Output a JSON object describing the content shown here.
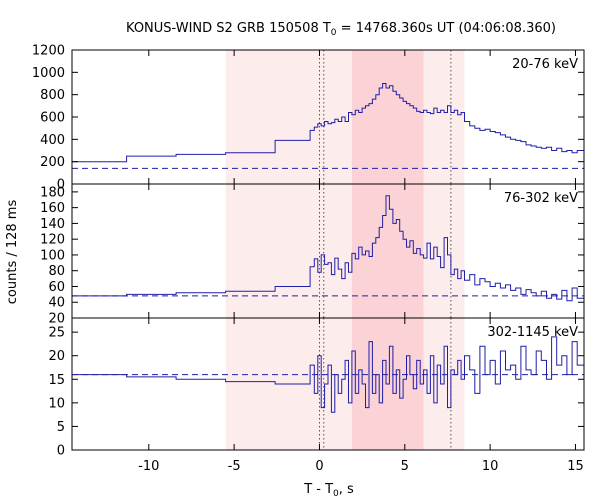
{
  "chart_data": {
    "type": "line",
    "title": "KONUS-WIND S2 GRB 150508 T",
    "title_sub": "0",
    "title_rest": " = 14768.360s UT (04:06:08.360)",
    "xlabel": "T - T",
    "xlabel_sub": "0",
    "xlabel_rest": ", s",
    "ylabel": "counts / 128 ms",
    "xlim": [
      -14.5,
      15.5
    ],
    "xticks": [
      -10,
      -5,
      0,
      5,
      10,
      15
    ],
    "shaded_regions": [
      {
        "from": -5.5,
        "to": 8.5,
        "color": "#fdecec"
      },
      {
        "from": 1.9,
        "to": 6.1,
        "color": "#fbd3d6"
      }
    ],
    "vlines": [
      0,
      0.25,
      7.7
    ],
    "line_color": "#1f1fa8",
    "panels": [
      {
        "label": "20-76 keV",
        "ylim": [
          0,
          1200
        ],
        "yticks": [
          0,
          200,
          400,
          600,
          800,
          1000,
          1200
        ],
        "background": 140,
        "series": {
          "x": [
            -14.5,
            -11.3,
            -11.3,
            -8.4,
            -8.4,
            -5.5,
            -5.5,
            -2.6,
            -2.6,
            -0.55,
            -0.55,
            -0.3,
            -0.1,
            0.1,
            0.3,
            0.5,
            0.7,
            0.9,
            1.1,
            1.3,
            1.5,
            1.7,
            1.9,
            2.1,
            2.3,
            2.5,
            2.7,
            2.9,
            3.1,
            3.3,
            3.5,
            3.7,
            3.9,
            4.1,
            4.3,
            4.5,
            4.7,
            4.9,
            5.1,
            5.3,
            5.5,
            5.7,
            5.9,
            6.1,
            6.3,
            6.5,
            6.7,
            6.9,
            7.1,
            7.3,
            7.5,
            7.7,
            7.9,
            8.1,
            8.3,
            8.5,
            8.8,
            9.1,
            9.4,
            9.7,
            10.0,
            10.3,
            10.6,
            10.9,
            11.2,
            11.5,
            11.8,
            12.1,
            12.4,
            12.7,
            13.0,
            13.3,
            13.6,
            13.9,
            14.2,
            14.5,
            14.8,
            15.1,
            15.5
          ],
          "y": [
            200,
            200,
            250,
            250,
            265,
            265,
            280,
            280,
            390,
            390,
            480,
            510,
            540,
            520,
            560,
            540,
            550,
            580,
            560,
            600,
            560,
            640,
            620,
            660,
            640,
            680,
            700,
            720,
            760,
            800,
            860,
            900,
            860,
            880,
            830,
            800,
            770,
            740,
            720,
            700,
            680,
            650,
            640,
            660,
            640,
            630,
            680,
            640,
            660,
            640,
            700,
            640,
            660,
            620,
            640,
            560,
            520,
            500,
            480,
            490,
            470,
            460,
            440,
            420,
            400,
            390,
            380,
            350,
            340,
            330,
            320,
            330,
            300,
            320,
            290,
            300,
            280,
            300,
            290
          ]
        }
      },
      {
        "label": "76-302 keV",
        "ylim": [
          20,
          190
        ],
        "yticks": [
          20,
          40,
          60,
          80,
          100,
          120,
          140,
          160,
          180
        ],
        "background": 48,
        "series": {
          "x": [
            -14.5,
            -11.3,
            -11.3,
            -8.4,
            -8.4,
            -5.5,
            -5.5,
            -2.6,
            -2.6,
            -0.55,
            -0.55,
            -0.3,
            -0.1,
            0.1,
            0.3,
            0.5,
            0.7,
            0.9,
            1.1,
            1.3,
            1.5,
            1.7,
            1.9,
            2.1,
            2.3,
            2.5,
            2.7,
            2.9,
            3.1,
            3.3,
            3.5,
            3.7,
            3.9,
            4.1,
            4.3,
            4.5,
            4.7,
            4.9,
            5.1,
            5.3,
            5.5,
            5.7,
            5.9,
            6.1,
            6.3,
            6.5,
            6.7,
            6.9,
            7.1,
            7.3,
            7.5,
            7.7,
            7.9,
            8.1,
            8.3,
            8.5,
            8.8,
            9.1,
            9.4,
            9.7,
            10.0,
            10.3,
            10.6,
            10.9,
            11.2,
            11.5,
            11.8,
            12.1,
            12.4,
            12.7,
            13.0,
            13.3,
            13.6,
            13.9,
            14.2,
            14.5,
            14.8,
            15.1,
            15.5
          ],
          "y": [
            48,
            48,
            50,
            50,
            52,
            52,
            54,
            54,
            60,
            60,
            85,
            95,
            78,
            100,
            88,
            90,
            75,
            96,
            82,
            70,
            90,
            78,
            102,
            95,
            110,
            100,
            105,
            98,
            115,
            122,
            135,
            150,
            175,
            158,
            140,
            145,
            130,
            120,
            110,
            118,
            102,
            108,
            100,
            96,
            115,
            95,
            110,
            98,
            84,
            122,
            100,
            75,
            82,
            70,
            80,
            68,
            75,
            62,
            70,
            66,
            60,
            64,
            58,
            62,
            55,
            58,
            50,
            56,
            52,
            48,
            54,
            45,
            50,
            44,
            55,
            42,
            58,
            45,
            50
          ]
        }
      },
      {
        "label": "302-1145 keV",
        "ylim": [
          0,
          28
        ],
        "yticks": [
          0,
          5,
          10,
          15,
          20,
          25
        ],
        "background": 16,
        "series": {
          "x": [
            -14.5,
            -11.3,
            -11.3,
            -8.4,
            -8.4,
            -5.5,
            -5.5,
            -2.6,
            -2.6,
            -0.55,
            -0.55,
            -0.3,
            -0.1,
            0.1,
            0.3,
            0.5,
            0.7,
            0.9,
            1.1,
            1.3,
            1.5,
            1.7,
            1.9,
            2.1,
            2.3,
            2.5,
            2.7,
            2.9,
            3.1,
            3.3,
            3.5,
            3.7,
            3.9,
            4.1,
            4.3,
            4.5,
            4.7,
            4.9,
            5.1,
            5.3,
            5.5,
            5.7,
            5.9,
            6.1,
            6.3,
            6.5,
            6.7,
            6.9,
            7.1,
            7.3,
            7.5,
            7.7,
            7.9,
            8.1,
            8.3,
            8.5,
            8.8,
            9.1,
            9.4,
            9.7,
            10.0,
            10.3,
            10.6,
            10.9,
            11.2,
            11.5,
            11.8,
            12.1,
            12.4,
            12.7,
            13.0,
            13.3,
            13.6,
            13.9,
            14.2,
            14.5,
            14.8,
            15.1,
            15.5
          ],
          "y": [
            16,
            16,
            15.5,
            15.5,
            15,
            15,
            14.5,
            14.5,
            14,
            14,
            18,
            12,
            20,
            9,
            14,
            18,
            8,
            16,
            12,
            15,
            19,
            10,
            21,
            12,
            17,
            14,
            9,
            23,
            12,
            16,
            10,
            19,
            14,
            22,
            12,
            17,
            11,
            15,
            20,
            16,
            13,
            19,
            14,
            17,
            12,
            20,
            10,
            18,
            14,
            22,
            9,
            17,
            16,
            19,
            15,
            20,
            17,
            12,
            22,
            16,
            19,
            14,
            21,
            17,
            18,
            15,
            22,
            17,
            16,
            21,
            19,
            15,
            24,
            18,
            20,
            16,
            23,
            18,
            20
          ]
        }
      }
    ]
  }
}
